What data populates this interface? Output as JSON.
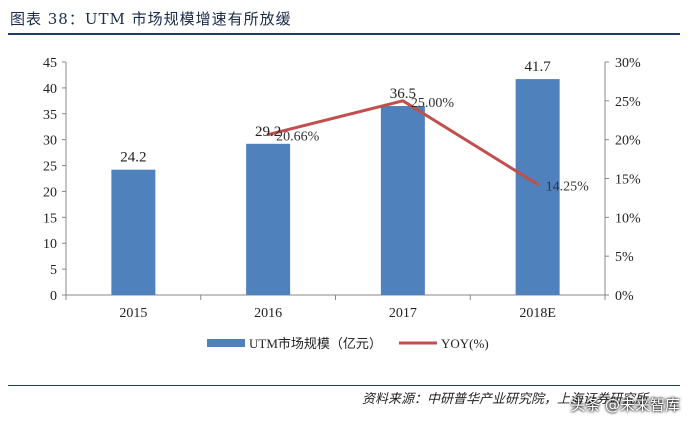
{
  "header": {
    "figure_title": "图表 38：UTM 市场规模增速有所放缓"
  },
  "footer": {
    "source": "资料来源：中研普华产业研究院，上海证券研究所",
    "watermark": "头条 @未来智库"
  },
  "colors": {
    "bar": "#4f81bd",
    "line": "#c0504d",
    "rule": "#1f3b63"
  },
  "chart_data": {
    "type": "bar",
    "categories": [
      "2015",
      "2016",
      "2017",
      "2018E"
    ],
    "series": [
      {
        "name": "UTM市场规模（亿元）",
        "type": "bar",
        "axis": "left",
        "values": [
          24.2,
          29.2,
          36.5,
          41.7
        ],
        "labels": [
          "24.2",
          "29.2",
          "36.5",
          "41.7"
        ]
      },
      {
        "name": "YOY(%)",
        "type": "line",
        "axis": "right",
        "values": [
          null,
          20.66,
          25.0,
          14.25
        ],
        "labels": [
          "",
          "20.66%",
          "25.00%",
          "14.25%"
        ]
      }
    ],
    "y_left": {
      "min": 0,
      "max": 45,
      "ticks": [
        "0",
        "5",
        "10",
        "15",
        "20",
        "25",
        "30",
        "35",
        "40",
        "45"
      ]
    },
    "y_right": {
      "min": 0,
      "max": 30,
      "ticks": [
        "0%",
        "5%",
        "10%",
        "15%",
        "20%",
        "25%",
        "30%"
      ]
    },
    "grid": false,
    "legend": "bottom"
  }
}
